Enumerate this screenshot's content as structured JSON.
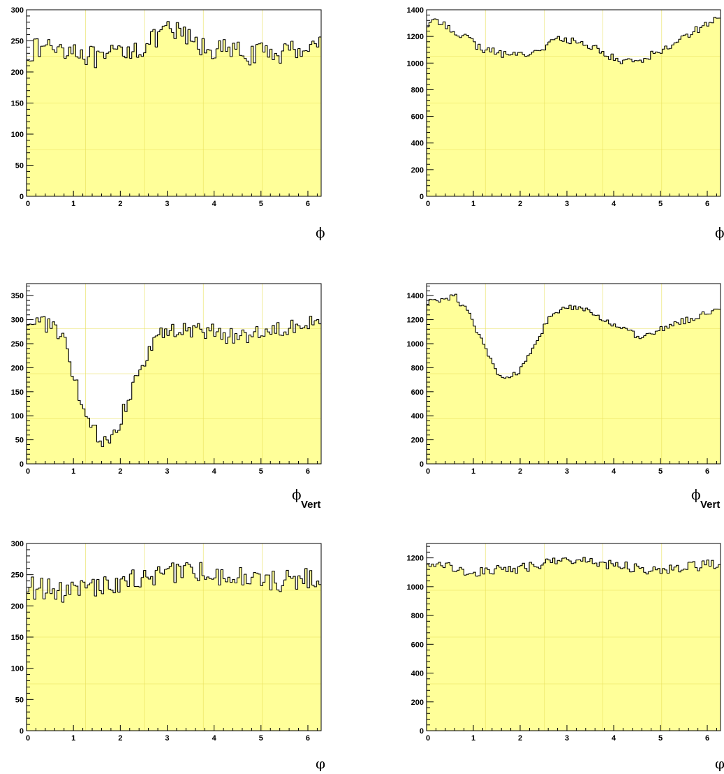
{
  "chart_data": [
    {
      "type": "bar",
      "panel": "top-left",
      "xlabel": "ϕ",
      "xlabel_sub": "",
      "xlim": [
        0,
        6.2832
      ],
      "ylim": [
        0,
        300
      ],
      "xticks": [
        "0",
        "1",
        "2",
        "3",
        "4",
        "5",
        "6"
      ],
      "yticks": [
        "0",
        "50",
        "100",
        "150",
        "200",
        "250",
        "300"
      ],
      "bins": 126,
      "anchors": [
        [
          0,
          232
        ],
        [
          0.5,
          242
        ],
        [
          1.0,
          238
        ],
        [
          1.3,
          228
        ],
        [
          1.6,
          215
        ],
        [
          2.0,
          235
        ],
        [
          2.5,
          240
        ],
        [
          3.0,
          265
        ],
        [
          3.3,
          262
        ],
        [
          3.7,
          240
        ],
        [
          4.2,
          235
        ],
        [
          4.8,
          228
        ],
        [
          5.5,
          232
        ],
        [
          6.2832,
          248
        ]
      ],
      "noise": 18
    },
    {
      "type": "bar",
      "panel": "top-right",
      "xlabel": "ϕ",
      "xlabel_sub": "",
      "xlim": [
        0,
        6.2832
      ],
      "ylim": [
        0,
        1400
      ],
      "xticks": [
        "0",
        "1",
        "2",
        "3",
        "4",
        "5",
        "6"
      ],
      "yticks": [
        "0",
        "200",
        "400",
        "600",
        "800",
        "1000",
        "1200",
        "1400"
      ],
      "bins": 126,
      "anchors": [
        [
          0,
          1290
        ],
        [
          0.3,
          1310
        ],
        [
          0.8,
          1200
        ],
        [
          1.2,
          1100
        ],
        [
          1.8,
          1060
        ],
        [
          2.3,
          1080
        ],
        [
          2.8,
          1180
        ],
        [
          3.3,
          1150
        ],
        [
          3.7,
          1100
        ],
        [
          4.1,
          1010
        ],
        [
          4.6,
          1030
        ],
        [
          5.0,
          1090
        ],
        [
          5.6,
          1220
        ],
        [
          6.2832,
          1350
        ]
      ],
      "noise": 30
    },
    {
      "type": "bar",
      "panel": "middle-left",
      "xlabel": "ϕ",
      "xlabel_sub": "Vert",
      "xlim": [
        0,
        6.2832
      ],
      "ylim": [
        0,
        375
      ],
      "xticks": [
        "0",
        "1",
        "2",
        "3",
        "4",
        "5",
        "6"
      ],
      "yticks": [
        "0",
        "50",
        "100",
        "150",
        "200",
        "250",
        "300",
        "350"
      ],
      "bins": 126,
      "anchors": [
        [
          0,
          300
        ],
        [
          0.5,
          290
        ],
        [
          0.8,
          255
        ],
        [
          1.0,
          180
        ],
        [
          1.2,
          120
        ],
        [
          1.4,
          70
        ],
        [
          1.6,
          50
        ],
        [
          1.9,
          60
        ],
        [
          2.1,
          120
        ],
        [
          2.4,
          200
        ],
        [
          2.8,
          270
        ],
        [
          3.5,
          280
        ],
        [
          4.5,
          265
        ],
        [
          5.5,
          285
        ],
        [
          6.2832,
          305
        ]
      ],
      "noise": 18
    },
    {
      "type": "bar",
      "panel": "middle-right",
      "xlabel": "ϕ",
      "xlabel_sub": "Vert",
      "xlim": [
        0,
        6.2832
      ],
      "ylim": [
        0,
        1500
      ],
      "xticks": [
        "0",
        "1",
        "2",
        "3",
        "4",
        "5",
        "6"
      ],
      "yticks": [
        "0",
        "200",
        "400",
        "600",
        "800",
        "1000",
        "1200",
        "1400"
      ],
      "bins": 126,
      "anchors": [
        [
          0,
          1340
        ],
        [
          0.6,
          1400
        ],
        [
          0.9,
          1250
        ],
        [
          1.2,
          1000
        ],
        [
          1.5,
          760
        ],
        [
          1.7,
          700
        ],
        [
          2.0,
          780
        ],
        [
          2.3,
          1000
        ],
        [
          2.6,
          1200
        ],
        [
          3.0,
          1310
        ],
        [
          3.5,
          1260
        ],
        [
          4.0,
          1160
        ],
        [
          4.6,
          1040
        ],
        [
          5.0,
          1120
        ],
        [
          5.5,
          1190
        ],
        [
          6.2832,
          1290
        ]
      ],
      "noise": 28
    },
    {
      "type": "bar",
      "panel": "bottom-left",
      "xlabel": "φ",
      "xlabel_sub": "",
      "xlim": [
        0,
        6.2832
      ],
      "ylim": [
        0,
        300
      ],
      "xticks": [
        "0",
        "1",
        "2",
        "3",
        "4",
        "5",
        "6"
      ],
      "yticks": [
        "0",
        "50",
        "100",
        "150",
        "200",
        "250",
        "300"
      ],
      "bins": 126,
      "anchors": [
        [
          0,
          230
        ],
        [
          1.0,
          222
        ],
        [
          2.0,
          238
        ],
        [
          3.0,
          252
        ],
        [
          3.5,
          258
        ],
        [
          4.5,
          245
        ],
        [
          5.5,
          240
        ],
        [
          6.2832,
          246
        ]
      ],
      "noise": 18
    },
    {
      "type": "bar",
      "panel": "bottom-right",
      "xlabel": "φ",
      "xlabel_sub": "",
      "xlim": [
        0,
        6.2832
      ],
      "ylim": [
        0,
        1300
      ],
      "xticks": [
        "0",
        "1",
        "2",
        "3",
        "4",
        "5",
        "6"
      ],
      "yticks": [
        "0",
        "200",
        "400",
        "600",
        "800",
        "1000",
        "1200"
      ],
      "bins": 126,
      "anchors": [
        [
          0,
          1170
        ],
        [
          1.0,
          1100
        ],
        [
          2.0,
          1130
        ],
        [
          3.0,
          1190
        ],
        [
          4.0,
          1150
        ],
        [
          5.0,
          1110
        ],
        [
          6.2832,
          1165
        ]
      ],
      "noise": 35
    }
  ],
  "style": {
    "fill_color": "#ffff99",
    "grid_color": "#e8e05a",
    "line_color": "#000000",
    "grid": true
  }
}
